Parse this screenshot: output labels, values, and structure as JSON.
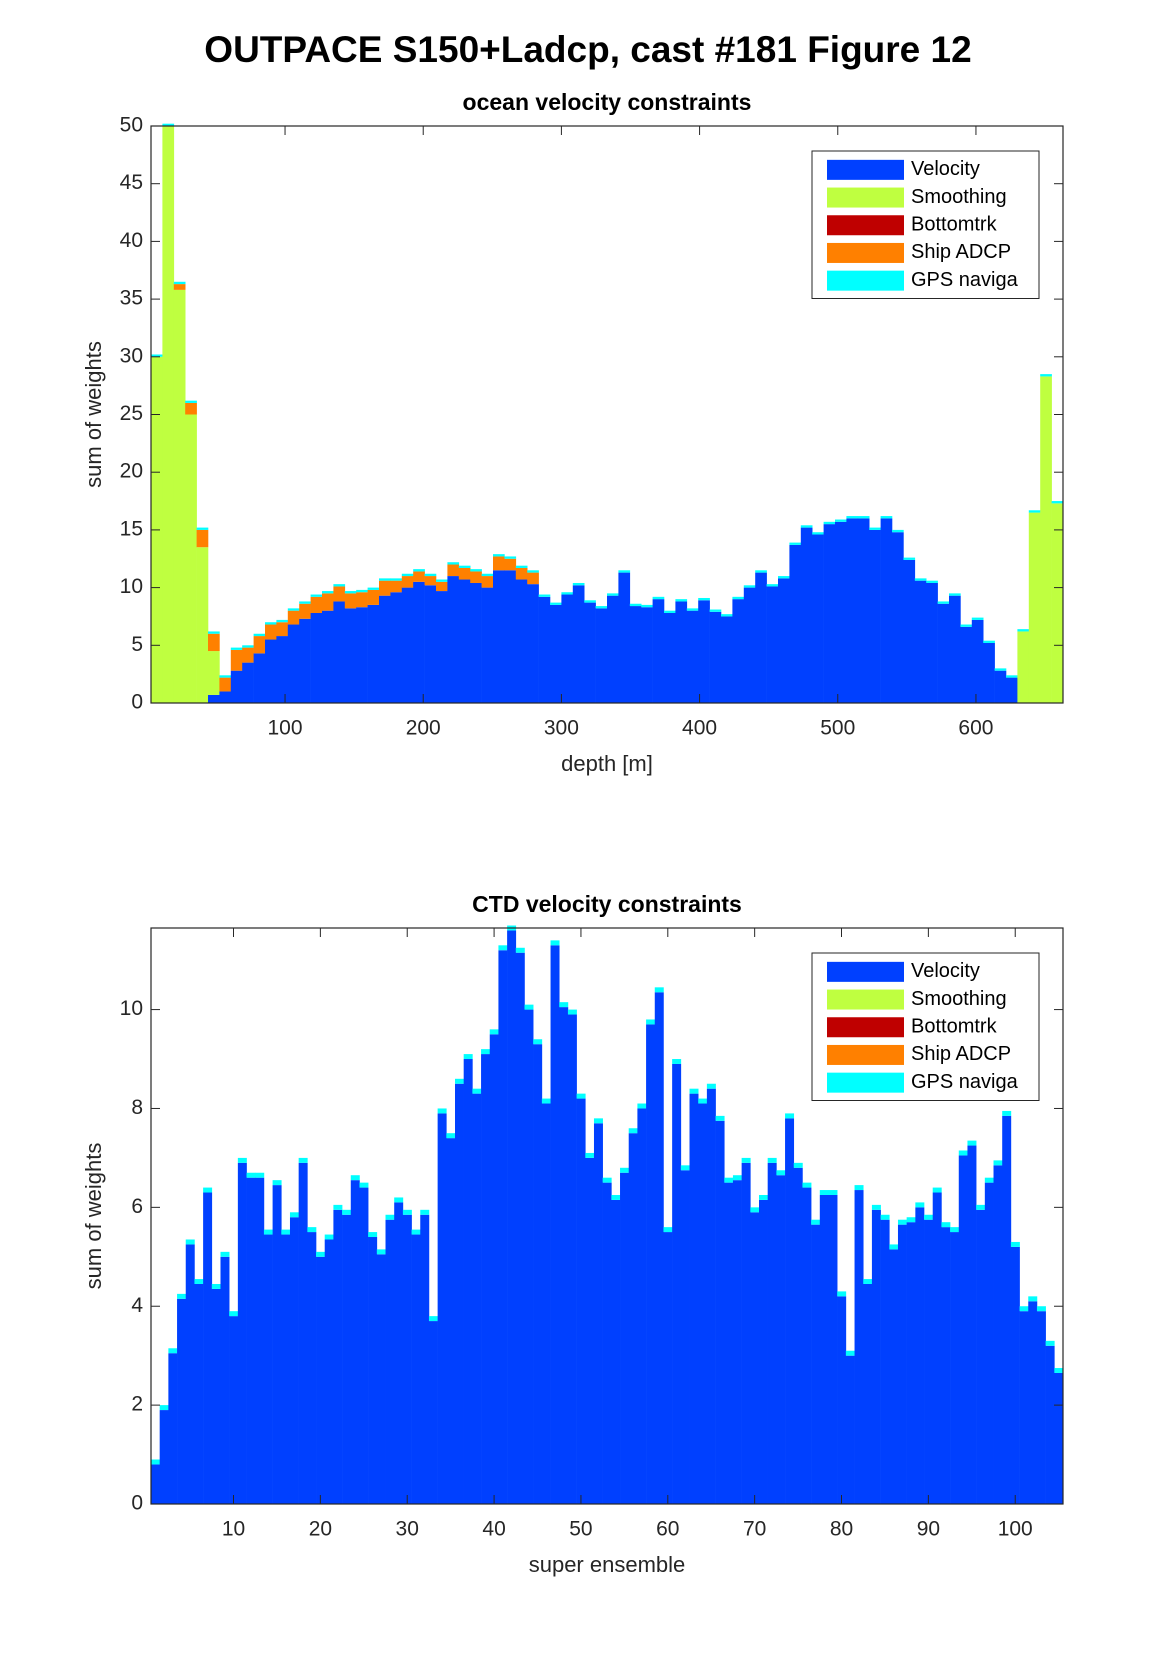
{
  "page_title": "OUTPACE S150+Ladcp, cast #181  Figure 12",
  "chart_data": [
    {
      "type": "bar",
      "stacked": true,
      "title": "ocean velocity constraints",
      "xlabel": "depth [m]",
      "ylabel": "sum of weights",
      "xlim": [
        3,
        663
      ],
      "ylim": [
        0,
        50
      ],
      "xticks": [
        100,
        200,
        300,
        400,
        500,
        600
      ],
      "yticks": [
        0,
        5,
        10,
        15,
        20,
        25,
        30,
        35,
        40,
        45,
        50
      ],
      "legend": "upper right",
      "x": [
        7.125,
        15.375,
        23.625,
        31.875,
        40.125,
        48.375,
        56.625,
        64.875,
        73.125,
        81.375,
        89.625,
        97.875,
        106.125,
        114.375,
        122.625,
        130.875,
        139.125,
        147.375,
        155.625,
        163.875,
        172.125,
        180.375,
        188.625,
        196.875,
        205.125,
        213.375,
        221.625,
        229.875,
        238.125,
        246.375,
        254.625,
        262.875,
        271.125,
        279.375,
        287.625,
        295.875,
        304.125,
        312.375,
        320.625,
        328.875,
        337.125,
        345.375,
        353.625,
        361.875,
        370.125,
        378.375,
        386.625,
        394.875,
        403.125,
        411.375,
        419.625,
        427.875,
        436.125,
        444.375,
        452.625,
        460.875,
        469.125,
        477.375,
        485.625,
        493.875,
        502.125,
        510.375,
        518.625,
        526.875,
        535.125,
        543.375,
        551.625,
        559.875,
        568.125,
        576.375,
        584.625,
        592.875,
        601.125,
        609.375,
        617.625,
        625.875,
        634.125,
        642.375,
        650.625,
        658.875
      ],
      "series": [
        {
          "name": "Velocity",
          "color": "#0040ff",
          "values": [
            0,
            0,
            0,
            0,
            0,
            0.7,
            1,
            2.8,
            3.5,
            4.3,
            5.5,
            5.8,
            6.8,
            7.3,
            7.8,
            8,
            8.8,
            8.2,
            8.3,
            8.5,
            9.3,
            9.6,
            10,
            10.5,
            10.2,
            9.7,
            11,
            10.7,
            10.4,
            10,
            11.5,
            11.5,
            10.7,
            10.3,
            9.2,
            8.5,
            9.4,
            10.2,
            8.7,
            8.2,
            9.3,
            11.3,
            8.4,
            8.3,
            9,
            7.8,
            8.8,
            8,
            8.9,
            7.9,
            7.5,
            9,
            10,
            11.3,
            10.1,
            10.8,
            13.7,
            15.2,
            14.6,
            15.5,
            15.7,
            16,
            16,
            15,
            16,
            14.8,
            12.4,
            10.6,
            10.4,
            8.6,
            9.3,
            6.6,
            7.2,
            5.2,
            2.8,
            2.2,
            0,
            0,
            0,
            0
          ]
        },
        {
          "name": "Smoothing",
          "color": "#bfff40",
          "values": [
            30,
            50,
            35.8,
            25,
            13.5,
            3.8,
            0,
            0,
            0,
            0,
            0,
            0,
            0,
            0,
            0,
            0,
            0,
            0,
            0,
            0,
            0,
            0,
            0,
            0,
            0,
            0,
            0,
            0,
            0,
            0,
            0,
            0,
            0,
            0,
            0,
            0,
            0,
            0,
            0,
            0,
            0,
            0,
            0,
            0,
            0,
            0,
            0,
            0,
            0,
            0,
            0,
            0,
            0,
            0,
            0,
            0,
            0,
            0,
            0,
            0,
            0,
            0,
            0,
            0,
            0,
            0,
            0,
            0,
            0,
            0,
            0,
            0,
            0,
            0,
            0,
            0,
            6.2,
            16.5,
            28.3,
            17.3
          ]
        },
        {
          "name": "Bottomtrk",
          "color": "#bf0000",
          "values": [
            0,
            0,
            0,
            0,
            0,
            0,
            0,
            0,
            0,
            0,
            0,
            0,
            0,
            0,
            0,
            0,
            0,
            0,
            0,
            0,
            0,
            0,
            0,
            0,
            0,
            0,
            0,
            0,
            0,
            0,
            0,
            0,
            0,
            0,
            0,
            0,
            0,
            0,
            0,
            0,
            0,
            0,
            0,
            0,
            0,
            0,
            0,
            0,
            0,
            0,
            0,
            0,
            0,
            0,
            0,
            0,
            0,
            0,
            0,
            0,
            0,
            0,
            0,
            0,
            0,
            0,
            0,
            0,
            0,
            0,
            0,
            0,
            0,
            0,
            0,
            0,
            0,
            0,
            0,
            0
          ]
        },
        {
          "name": "Ship ADCP",
          "color": "#ff8000",
          "values": [
            0,
            0,
            0.5,
            1,
            1.5,
            1.5,
            1.2,
            1.8,
            1.3,
            1.5,
            1.3,
            1.2,
            1.2,
            1.3,
            1.4,
            1.5,
            1.3,
            1.3,
            1.3,
            1.3,
            1.3,
            1,
            1,
            0.9,
            0.8,
            0.8,
            1,
            1,
            1,
            1,
            1.2,
            1,
            1,
            1,
            0,
            0,
            0,
            0,
            0,
            0,
            0,
            0,
            0,
            0,
            0,
            0,
            0,
            0,
            0,
            0,
            0,
            0,
            0,
            0,
            0,
            0,
            0,
            0,
            0,
            0,
            0,
            0,
            0,
            0,
            0,
            0,
            0,
            0,
            0,
            0,
            0,
            0,
            0,
            0,
            0,
            0,
            0,
            0,
            0,
            0
          ]
        },
        {
          "name": "GPS naviga",
          "color": "#00ffff",
          "values": [
            0.2,
            0.2,
            0.2,
            0.2,
            0.2,
            0.2,
            0.2,
            0.2,
            0.2,
            0.2,
            0.2,
            0.2,
            0.2,
            0.2,
            0.2,
            0.2,
            0.2,
            0.2,
            0.2,
            0.2,
            0.2,
            0.2,
            0.2,
            0.2,
            0.2,
            0.2,
            0.2,
            0.2,
            0.2,
            0.2,
            0.2,
            0.2,
            0.2,
            0.2,
            0.2,
            0.2,
            0.2,
            0.2,
            0.2,
            0.2,
            0.2,
            0.2,
            0.2,
            0.2,
            0.2,
            0.2,
            0.2,
            0.2,
            0.2,
            0.2,
            0.2,
            0.2,
            0.2,
            0.2,
            0.2,
            0.2,
            0.2,
            0.2,
            0.2,
            0.2,
            0.2,
            0.2,
            0.2,
            0.2,
            0.2,
            0.2,
            0.2,
            0.2,
            0.2,
            0.2,
            0.2,
            0.2,
            0.2,
            0.2,
            0.2,
            0.2,
            0.2,
            0.2,
            0.2,
            0.2
          ]
        }
      ]
    },
    {
      "type": "bar",
      "stacked": true,
      "title": "CTD velocity constraints",
      "xlabel": "super ensemble",
      "ylabel": "sum of weights",
      "xlim": [
        0.5,
        105.5
      ],
      "ylim": [
        0,
        11.65
      ],
      "xticks": [
        10,
        20,
        30,
        40,
        50,
        60,
        70,
        80,
        90,
        100
      ],
      "yticks": [
        0,
        2,
        4,
        6,
        8,
        10
      ],
      "legend": "upper right",
      "x": [
        1,
        2,
        3,
        4,
        5,
        6,
        7,
        8,
        9,
        10,
        11,
        12,
        13,
        14,
        15,
        16,
        17,
        18,
        19,
        20,
        21,
        22,
        23,
        24,
        25,
        26,
        27,
        28,
        29,
        30,
        31,
        32,
        33,
        34,
        35,
        36,
        37,
        38,
        39,
        40,
        41,
        42,
        43,
        44,
        45,
        46,
        47,
        48,
        49,
        50,
        51,
        52,
        53,
        54,
        55,
        56,
        57,
        58,
        59,
        60,
        61,
        62,
        63,
        64,
        65,
        66,
        67,
        68,
        69,
        70,
        71,
        72,
        73,
        74,
        75,
        76,
        77,
        78,
        79,
        80,
        81,
        82,
        83,
        84,
        85,
        86,
        87,
        88,
        89,
        90,
        91,
        92,
        93,
        94,
        95,
        96,
        97,
        98,
        99,
        100,
        101,
        102,
        103,
        104,
        105
      ],
      "series": [
        {
          "name": "Velocity",
          "color": "#0040ff",
          "values": [
            0.8,
            1.9,
            3.05,
            4.15,
            5.25,
            4.45,
            6.3,
            4.35,
            5,
            3.8,
            6.9,
            6.6,
            6.6,
            5.45,
            6.45,
            5.45,
            5.8,
            6.9,
            5.5,
            5,
            5.35,
            5.95,
            5.85,
            6.55,
            6.4,
            5.4,
            5.05,
            5.75,
            6.1,
            5.85,
            5.45,
            5.85,
            3.7,
            7.9,
            7.4,
            8.5,
            9,
            8.3,
            9.1,
            9.5,
            11.2,
            11.6,
            11.15,
            10,
            9.3,
            8.1,
            11.3,
            10.05,
            9.9,
            8.2,
            7,
            7.7,
            6.5,
            6.15,
            6.7,
            7.5,
            8,
            9.7,
            10.35,
            5.5,
            8.9,
            6.75,
            8.3,
            8.1,
            8.4,
            7.75,
            6.5,
            6.55,
            6.9,
            5.9,
            6.15,
            6.9,
            6.65,
            7.8,
            6.8,
            6.4,
            5.65,
            6.25,
            6.25,
            4.2,
            3,
            6.35,
            4.45,
            5.95,
            5.75,
            5.15,
            5.65,
            5.7,
            6,
            5.75,
            6.3,
            5.6,
            5.5,
            7.05,
            7.25,
            5.95,
            6.5,
            6.85,
            7.85,
            5.2,
            3.9,
            4.1,
            3.9,
            3.2,
            2.65
          ]
        },
        {
          "name": "Smoothing",
          "color": "#bfff40",
          "values": [
            0,
            0,
            0,
            0,
            0,
            0,
            0,
            0,
            0,
            0,
            0,
            0,
            0,
            0,
            0,
            0,
            0,
            0,
            0,
            0,
            0,
            0,
            0,
            0,
            0,
            0,
            0,
            0,
            0,
            0,
            0,
            0,
            0,
            0,
            0,
            0,
            0,
            0,
            0,
            0,
            0,
            0,
            0,
            0,
            0,
            0,
            0,
            0,
            0,
            0,
            0,
            0,
            0,
            0,
            0,
            0,
            0,
            0,
            0,
            0,
            0,
            0,
            0,
            0,
            0,
            0,
            0,
            0,
            0,
            0,
            0,
            0,
            0,
            0,
            0,
            0,
            0,
            0,
            0,
            0,
            0,
            0,
            0,
            0,
            0,
            0,
            0,
            0,
            0,
            0,
            0,
            0,
            0,
            0,
            0,
            0,
            0,
            0,
            0,
            0,
            0,
            0,
            0,
            0,
            0
          ]
        },
        {
          "name": "Bottomtrk",
          "color": "#bf0000",
          "values": [
            0,
            0,
            0,
            0,
            0,
            0,
            0,
            0,
            0,
            0,
            0,
            0,
            0,
            0,
            0,
            0,
            0,
            0,
            0,
            0,
            0,
            0,
            0,
            0,
            0,
            0,
            0,
            0,
            0,
            0,
            0,
            0,
            0,
            0,
            0,
            0,
            0,
            0,
            0,
            0,
            0,
            0,
            0,
            0,
            0,
            0,
            0,
            0,
            0,
            0,
            0,
            0,
            0,
            0,
            0,
            0,
            0,
            0,
            0,
            0,
            0,
            0,
            0,
            0,
            0,
            0,
            0,
            0,
            0,
            0,
            0,
            0,
            0,
            0,
            0,
            0,
            0,
            0,
            0,
            0,
            0,
            0,
            0,
            0,
            0,
            0,
            0,
            0,
            0,
            0,
            0,
            0,
            0,
            0,
            0,
            0,
            0,
            0,
            0,
            0,
            0,
            0,
            0,
            0,
            0
          ]
        },
        {
          "name": "Ship ADCP",
          "color": "#ff8000",
          "values": [
            0,
            0,
            0,
            0,
            0,
            0,
            0,
            0,
            0,
            0,
            0,
            0,
            0,
            0,
            0,
            0,
            0,
            0,
            0,
            0,
            0,
            0,
            0,
            0,
            0,
            0,
            0,
            0,
            0,
            0,
            0,
            0,
            0,
            0,
            0,
            0,
            0,
            0,
            0,
            0,
            0,
            0,
            0,
            0,
            0,
            0,
            0,
            0,
            0,
            0,
            0,
            0,
            0,
            0,
            0,
            0,
            0,
            0,
            0,
            0,
            0,
            0,
            0,
            0,
            0,
            0,
            0,
            0,
            0,
            0,
            0,
            0,
            0,
            0,
            0,
            0,
            0,
            0,
            0,
            0,
            0,
            0,
            0,
            0,
            0,
            0,
            0,
            0,
            0,
            0,
            0,
            0,
            0,
            0,
            0,
            0,
            0,
            0,
            0,
            0,
            0,
            0,
            0,
            0,
            0
          ]
        },
        {
          "name": "GPS naviga",
          "color": "#00ffff",
          "values": [
            0.1,
            0.1,
            0.1,
            0.1,
            0.1,
            0.1,
            0.1,
            0.1,
            0.1,
            0.1,
            0.1,
            0.1,
            0.1,
            0.1,
            0.1,
            0.1,
            0.1,
            0.1,
            0.1,
            0.1,
            0.1,
            0.1,
            0.1,
            0.1,
            0.1,
            0.1,
            0.1,
            0.1,
            0.1,
            0.1,
            0.1,
            0.1,
            0.1,
            0.1,
            0.1,
            0.1,
            0.1,
            0.1,
            0.1,
            0.1,
            0.1,
            0.1,
            0.1,
            0.1,
            0.1,
            0.1,
            0.1,
            0.1,
            0.1,
            0.1,
            0.1,
            0.1,
            0.1,
            0.1,
            0.1,
            0.1,
            0.1,
            0.1,
            0.1,
            0.1,
            0.1,
            0.1,
            0.1,
            0.1,
            0.1,
            0.1,
            0.1,
            0.1,
            0.1,
            0.1,
            0.1,
            0.1,
            0.1,
            0.1,
            0.1,
            0.1,
            0.1,
            0.1,
            0.1,
            0.1,
            0.1,
            0.1,
            0.1,
            0.1,
            0.1,
            0.1,
            0.1,
            0.1,
            0.1,
            0.1,
            0.1,
            0.1,
            0.1,
            0.1,
            0.1,
            0.1,
            0.1,
            0.1,
            0.1,
            0.1,
            0.1,
            0.1,
            0.1,
            0.1,
            0.1
          ]
        }
      ]
    }
  ]
}
